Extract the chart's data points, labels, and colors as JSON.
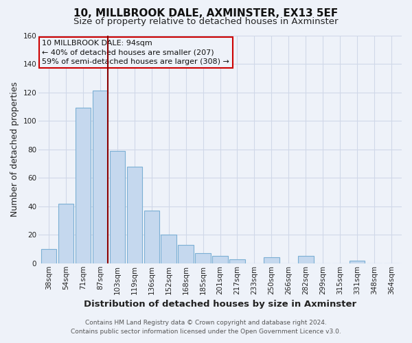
{
  "title": "10, MILLBROOK DALE, AXMINSTER, EX13 5EF",
  "subtitle": "Size of property relative to detached houses in Axminster",
  "xlabel": "Distribution of detached houses by size in Axminster",
  "ylabel": "Number of detached properties",
  "bar_labels": [
    "38sqm",
    "54sqm",
    "71sqm",
    "87sqm",
    "103sqm",
    "119sqm",
    "136sqm",
    "152sqm",
    "168sqm",
    "185sqm",
    "201sqm",
    "217sqm",
    "233sqm",
    "250sqm",
    "266sqm",
    "282sqm",
    "299sqm",
    "315sqm",
    "331sqm",
    "348sqm",
    "364sqm"
  ],
  "bar_values": [
    10,
    42,
    109,
    121,
    79,
    68,
    37,
    20,
    13,
    7,
    5,
    3,
    0,
    4,
    0,
    5,
    0,
    0,
    2,
    0,
    0
  ],
  "bar_color": "#c5d8ee",
  "bar_edge_color": "#7bafd4",
  "vline_color": "#8b0000",
  "ylim": [
    0,
    160
  ],
  "yticks": [
    0,
    20,
    40,
    60,
    80,
    100,
    120,
    140,
    160
  ],
  "annotation_title": "10 MILLBROOK DALE: 94sqm",
  "annotation_line1": "← 40% of detached houses are smaller (207)",
  "annotation_line2": "59% of semi-detached houses are larger (308) →",
  "footer_line1": "Contains HM Land Registry data © Crown copyright and database right 2024.",
  "footer_line2": "Contains public sector information licensed under the Open Government Licence v3.0.",
  "bg_color": "#eef2f9",
  "grid_color": "#d0d8e8",
  "title_fontsize": 11,
  "subtitle_fontsize": 9.5,
  "axis_label_fontsize": 9,
  "tick_fontsize": 7.5,
  "footer_fontsize": 6.5
}
